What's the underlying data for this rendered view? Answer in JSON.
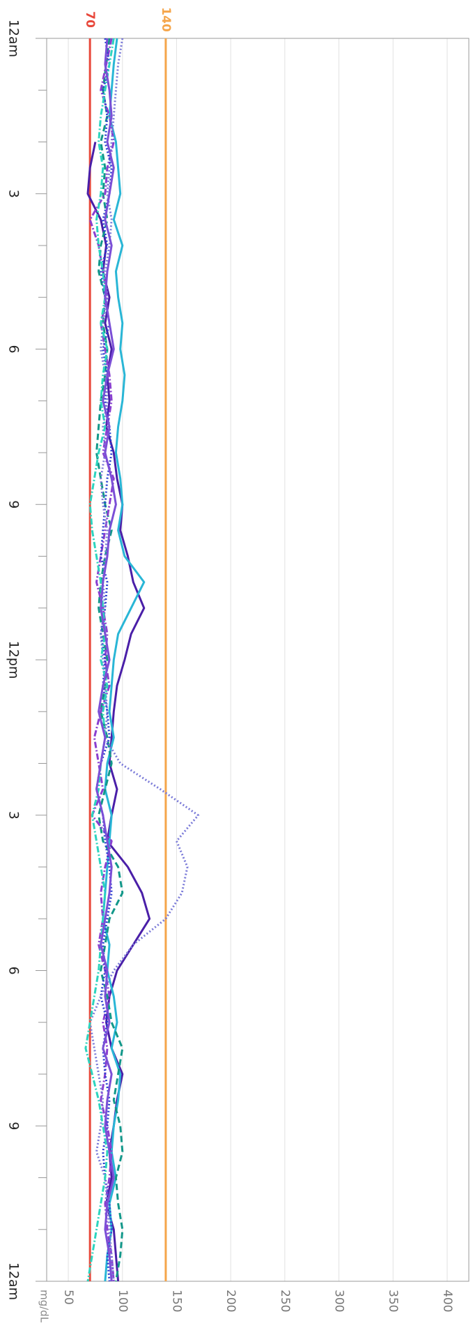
{
  "chart_data": {
    "type": "line",
    "ylabel": "mg/dL",
    "x": [
      0,
      0.5,
      1,
      1.5,
      2,
      2.5,
      3,
      3.5,
      4,
      4.5,
      5,
      5.5,
      6,
      6.5,
      7,
      7.5,
      8,
      8.5,
      9,
      9.5,
      10,
      10.5,
      11,
      11.5,
      12,
      12.5,
      13,
      13.5,
      14,
      14.5,
      15,
      15.5,
      16,
      16.5,
      17,
      17.5,
      18,
      18.5,
      19,
      19.5,
      20,
      20.5,
      21,
      21.5,
      22,
      22.5,
      23,
      23.5,
      24
    ],
    "xlim": [
      0,
      24
    ],
    "xticks": [
      {
        "value": 0,
        "label": "12am"
      },
      3,
      6,
      9,
      {
        "value": 12,
        "label": "12pm"
      },
      {
        "value": 15,
        "label": "3"
      },
      {
        "value": 18,
        "label": "6"
      },
      {
        "value": 21,
        "label": "9"
      },
      {
        "value": 24,
        "label": "12am"
      }
    ],
    "xminorticks": [
      1,
      2,
      4,
      5,
      7,
      8,
      10,
      11,
      13,
      14,
      16,
      17,
      19,
      20,
      22,
      23
    ],
    "ylim": [
      30,
      420
    ],
    "yticks": [
      50,
      100,
      150,
      200,
      250,
      300,
      350,
      400
    ],
    "grid": true,
    "thresholds": [
      {
        "value": 70,
        "color": "#e8483b"
      },
      {
        "value": 140,
        "color": "#f5a54a"
      }
    ],
    "series": [
      {
        "color": "#4a1fa8",
        "dash": "solid",
        "values": [
          null,
          null,
          null,
          null,
          75,
          70,
          68,
          80,
          85,
          82,
          88,
          84,
          90,
          86,
          88,
          85,
          92,
          95,
          100,
          98,
          105,
          110,
          120,
          108,
          102,
          95,
          92,
          90,
          88,
          95,
          90,
          86,
          105,
          118,
          125,
          110,
          95,
          88,
          85,
          90,
          100,
          95,
          92,
          88,
          90,
          85,
          92,
          94,
          96
        ]
      },
      {
        "color": "#29b6d6",
        "dash": "solid",
        "values": [
          95,
          92,
          90,
          88,
          94,
          96,
          98,
          92,
          100,
          94,
          96,
          100,
          98,
          102,
          100,
          96,
          94,
          98,
          100,
          96,
          102,
          120,
          108,
          96,
          92,
          90,
          88,
          92,
          86,
          84,
          90,
          88,
          86,
          84,
          82,
          88,
          86,
          92,
          95,
          90,
          98,
          96,
          92,
          90,
          94,
          88,
          90,
          86,
          84
        ]
      },
      {
        "color": "#12988a",
        "dash": "dashed",
        "values": [
          88,
          85,
          82,
          86,
          80,
          84,
          82,
          86,
          80,
          78,
          84,
          82,
          86,
          84,
          80,
          78,
          76,
          80,
          84,
          90,
          84,
          80,
          78,
          82,
          86,
          84,
          80,
          86,
          90,
          84,
          78,
          82,
          96,
          100,
          88,
          84,
          80,
          86,
          90,
          100,
          96,
          92,
          98,
          100,
          94,
          96,
          100,
          98,
          94
        ]
      },
      {
        "color": "#8a3fd0",
        "dash": "dashdot",
        "values": [
          90,
          85,
          80,
          88,
          92,
          86,
          84,
          70,
          78,
          82,
          86,
          80,
          84,
          88,
          90,
          86,
          82,
          92,
          88,
          84,
          80,
          76,
          82,
          86,
          84,
          88,
          80,
          74,
          78,
          82,
          72,
          90,
          84,
          80,
          82,
          78,
          84,
          88,
          82,
          86,
          84,
          80,
          86,
          90,
          88,
          84,
          86,
          90,
          92
        ]
      },
      {
        "color": "#2a3fd0",
        "dash": "dotted",
        "values": [
          84,
          88,
          82,
          86,
          84,
          90,
          88,
          82,
          86,
          80,
          84,
          88,
          82,
          86,
          84,
          88,
          90,
          86,
          84,
          82,
          80,
          86,
          84,
          80,
          84,
          82,
          86,
          88,
          80,
          76,
          82,
          84,
          88,
          90,
          86,
          82,
          84,
          80,
          86,
          82,
          84,
          88,
          86,
          82,
          84,
          88,
          90,
          86,
          88
        ]
      },
      {
        "color": "#7a7ad8",
        "dash": "dotted",
        "values": [
          100,
          96,
          94,
          92,
          90,
          88,
          86,
          90,
          88,
          84,
          86,
          82,
          80,
          84,
          86,
          82,
          84,
          80,
          82,
          86,
          84,
          82,
          84,
          80,
          82,
          84,
          86,
          84,
          98,
          135,
          170,
          150,
          160,
          155,
          140,
          110,
          92,
          80,
          70,
          74,
          78,
          82,
          80,
          76,
          84,
          86,
          88,
          90,
          92
        ]
      },
      {
        "color": "#2dd4bf",
        "dash": "dashdot",
        "values": [
          92,
          88,
          84,
          80,
          78,
          82,
          80,
          76,
          78,
          82,
          84,
          80,
          86,
          82,
          80,
          84,
          78,
          74,
          70,
          72,
          76,
          80,
          82,
          84,
          80,
          86,
          82,
          84,
          80,
          78,
          72,
          76,
          80,
          84,
          82,
          80,
          78,
          74,
          70,
          66,
          72,
          78,
          82,
          86,
          84,
          80,
          76,
          72,
          68
        ]
      },
      {
        "color": "#7b4fd6",
        "dash": "solid",
        "values": [
          86,
          84,
          88,
          90,
          86,
          92,
          88,
          84,
          90,
          86,
          84,
          88,
          92,
          86,
          82,
          88,
          84,
          90,
          94,
          88,
          86,
          82,
          80,
          84,
          88,
          82,
          78,
          84,
          80,
          76,
          82,
          86,
          90,
          88,
          84,
          80,
          86,
          84,
          88,
          82,
          90,
          86,
          84,
          88,
          92,
          86,
          84,
          88,
          90
        ]
      }
    ]
  }
}
